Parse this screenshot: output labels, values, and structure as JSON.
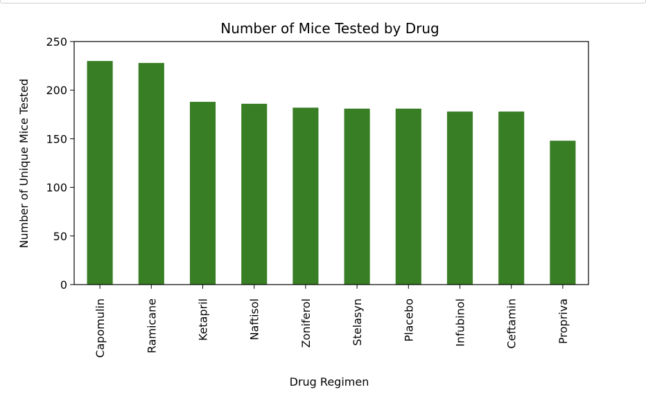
{
  "chart_data": {
    "type": "bar",
    "title": "Number of Mice Tested by Drug",
    "xlabel": "Drug Regimen",
    "ylabel": "Number of Unique Mice Tested",
    "categories": [
      "Capomulin",
      "Ramicane",
      "Ketapril",
      "Naftisol",
      "Zoniferol",
      "Stelasyn",
      "Placebo",
      "Infubinol",
      "Ceftamin",
      "Propriva"
    ],
    "values": [
      230,
      228,
      188,
      186,
      182,
      181,
      181,
      178,
      178,
      148
    ],
    "ylim": [
      0,
      250
    ],
    "yticks": [
      "0",
      "50",
      "100",
      "150",
      "200",
      "250"
    ],
    "grid": false,
    "bar_color": "#387e24"
  }
}
